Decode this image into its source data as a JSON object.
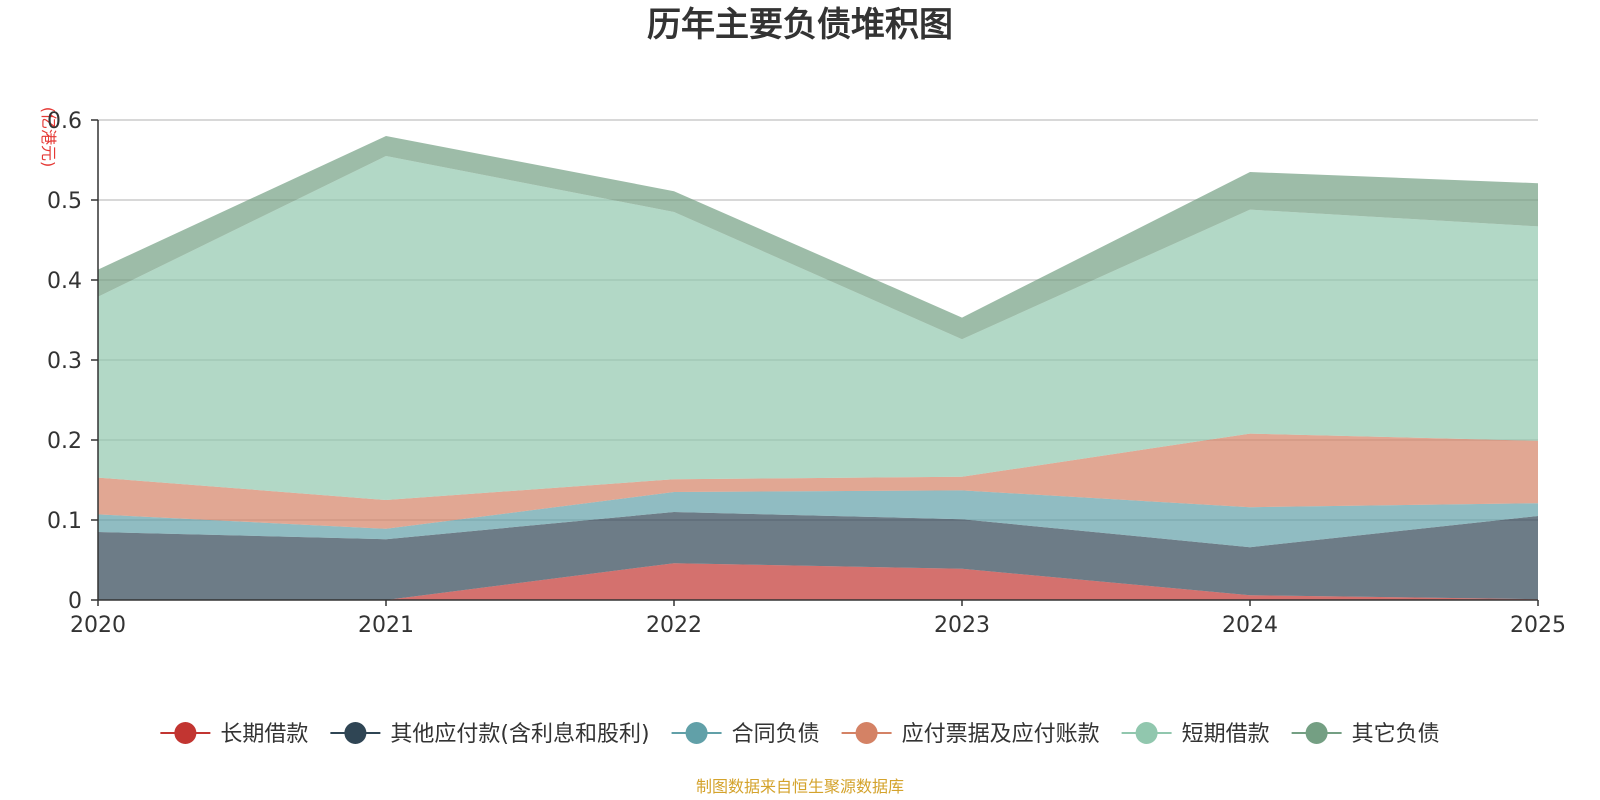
{
  "chart_data": {
    "type": "area",
    "stacked": true,
    "title": "历年主要负债堆积图",
    "ylabel": "(亿港元)",
    "xlabel": "",
    "x": [
      "2020",
      "2021",
      "2022",
      "2023",
      "2024",
      "2025"
    ],
    "ylim": [
      0,
      0.6
    ],
    "yticks": [
      0,
      0.1,
      0.2,
      0.3,
      0.4,
      0.5,
      0.6
    ],
    "ytick_labels": [
      "0",
      "0.1",
      "0.2",
      "0.3",
      "0.4",
      "0.5",
      "0.6"
    ],
    "grid": true,
    "legend_position": "bottom",
    "series": [
      {
        "name": "长期借款",
        "color": "#c23531",
        "values": [
          0,
          0,
          0.046,
          0.039,
          0.006,
          0.001
        ]
      },
      {
        "name": "其他应付款(含利息和股利)",
        "color": "#2f4554",
        "values": [
          0.085,
          0.076,
          0.064,
          0.062,
          0.06,
          0.104
        ]
      },
      {
        "name": "合同负债",
        "color": "#61a0a8",
        "values": [
          0.022,
          0.013,
          0.025,
          0.036,
          0.05,
          0.016
        ]
      },
      {
        "name": "应付票据及应付账款",
        "color": "#d48265",
        "values": [
          0.046,
          0.036,
          0.016,
          0.017,
          0.092,
          0.078
        ]
      },
      {
        "name": "短期借款",
        "color": "#91c7ae",
        "values": [
          0.226,
          0.43,
          0.334,
          0.172,
          0.28,
          0.268
        ]
      },
      {
        "name": "其它负债",
        "color": "#749f83",
        "values": [
          0.034,
          0.025,
          0.026,
          0.027,
          0.047,
          0.054
        ]
      }
    ]
  },
  "source_note": "制图数据来自恒生聚源数据库"
}
